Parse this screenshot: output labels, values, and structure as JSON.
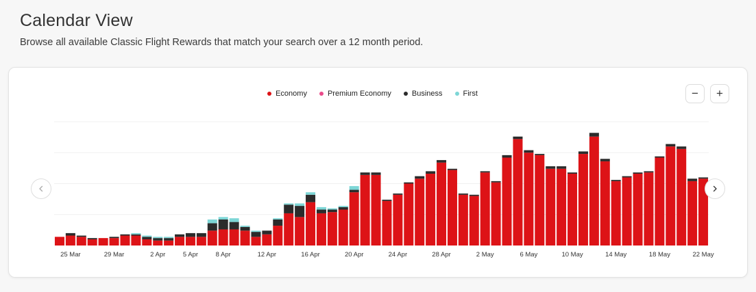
{
  "header": {
    "title": "Calendar View",
    "subtitle": "Browse all available Classic Flight Rewards that match your search over a 12 month period."
  },
  "controls": {
    "zoom_out_label": "−",
    "zoom_in_label": "+",
    "prev_icon": "chevron-left-icon",
    "next_icon": "chevron-right-icon"
  },
  "colors": {
    "economy": "#dd1317",
    "premium_economy": "#ea4b8b",
    "business": "#2b2b2b",
    "first": "#7dd6d6",
    "gridline": "#f0f0f0"
  },
  "chart_data": {
    "type": "bar",
    "stacked": true,
    "title": "",
    "xlabel": "",
    "ylabel": "",
    "ylim": [
      0,
      100
    ],
    "legend_position": "top-center",
    "grid": true,
    "legend": [
      "Economy",
      "Premium Economy",
      "Business",
      "First"
    ],
    "x_tick_labels": [
      "25 Mar",
      "29 Mar",
      "2 Apr",
      "5 Apr",
      "8 Apr",
      "12 Apr",
      "16 Apr",
      "20 Apr",
      "24 Apr",
      "28 Apr",
      "2 May",
      "6 May",
      "10 May",
      "14 May",
      "18 May",
      "22 May"
    ],
    "x_tick_indices": [
      1,
      5,
      9,
      12,
      15,
      19,
      23,
      27,
      31,
      35,
      39,
      43,
      47,
      51,
      55,
      59
    ],
    "series": [
      {
        "name": "Economy",
        "values": [
          7,
          8,
          7,
          5,
          6,
          6,
          8,
          8,
          5,
          4,
          4,
          7,
          7,
          7,
          12,
          13,
          13,
          12,
          7,
          9,
          16,
          26,
          23,
          35,
          26,
          27,
          29,
          43,
          57,
          57,
          36,
          41,
          50,
          54,
          58,
          67,
          61,
          41,
          40,
          59,
          51,
          71,
          86,
          75,
          73,
          62,
          62,
          58,
          74,
          88,
          68,
          52,
          55,
          58,
          59,
          71,
          80,
          78,
          52,
          54
        ],
        "colors_key": "economy"
      },
      {
        "name": "Premium Economy",
        "values": [
          0,
          0,
          0,
          0,
          0,
          0,
          0,
          0,
          0,
          0,
          0,
          0,
          0,
          0,
          0,
          0,
          0,
          0,
          0,
          0,
          0,
          0,
          0,
          0,
          0,
          0,
          0,
          0,
          0,
          0,
          0,
          0,
          0,
          0,
          0,
          0,
          0,
          0,
          0,
          0,
          0,
          0,
          0,
          0,
          0,
          0,
          0,
          0,
          0,
          0,
          0,
          0,
          0,
          0,
          0,
          0,
          0,
          0,
          0,
          0
        ],
        "colors_key": "premium_economy"
      },
      {
        "name": "Business",
        "values": [
          0,
          2,
          1,
          1,
          0,
          1,
          1,
          1,
          2,
          2,
          2,
          2,
          3,
          3,
          6,
          8,
          6,
          3,
          4,
          3,
          5,
          7,
          9,
          6,
          3,
          2,
          2,
          2,
          2,
          2,
          1,
          1,
          1,
          2,
          2,
          2,
          1,
          1,
          1,
          1,
          1,
          2,
          2,
          2,
          1,
          2,
          2,
          1,
          2,
          3,
          2,
          1,
          1,
          1,
          1,
          1,
          2,
          2,
          2,
          1
        ],
        "colors_key": "business"
      },
      {
        "name": "First",
        "values": [
          0,
          0,
          0,
          0,
          0,
          0,
          0,
          1,
          1,
          1,
          1,
          0,
          0,
          0,
          3,
          2,
          3,
          1,
          1,
          0,
          1,
          1,
          2,
          2,
          2,
          1,
          1,
          3,
          0,
          0,
          0,
          0,
          0,
          0,
          0,
          0,
          0,
          0,
          0,
          0,
          0,
          0,
          0,
          0,
          0,
          0,
          0,
          0,
          0,
          0,
          0,
          0,
          0,
          0,
          0,
          0,
          0,
          0,
          0,
          0
        ],
        "colors_key": "first"
      }
    ]
  }
}
